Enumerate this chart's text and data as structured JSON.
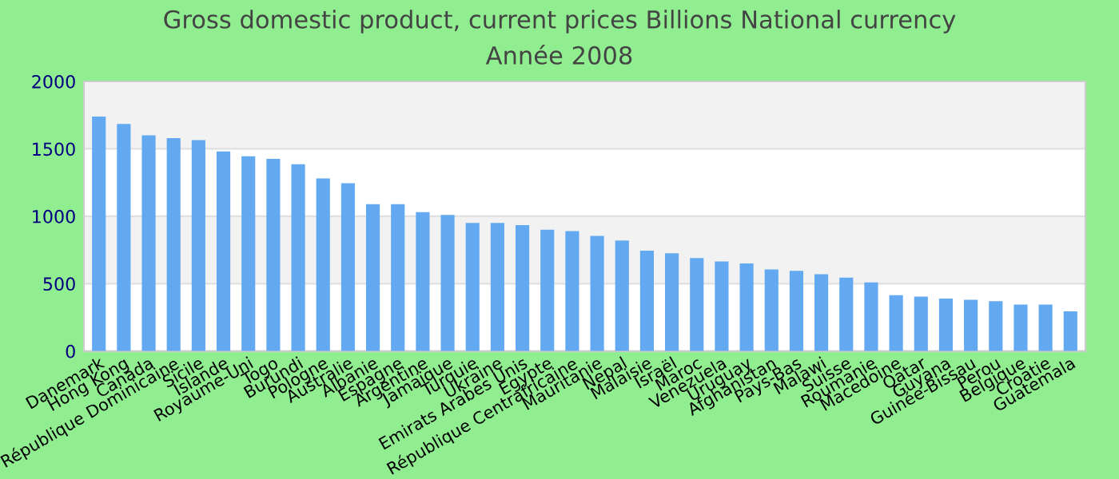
{
  "chart_data": {
    "type": "bar",
    "title": "Gross domestic product, current prices Billions National currency",
    "subtitle": "Année 2008",
    "categories": [
      "Danemark",
      "Hong Kong",
      "Canada",
      "République Dominicaine",
      "Sicile",
      "Islande",
      "Royaume-Uni",
      "Togo",
      "Burundi",
      "Pologne",
      "Australie",
      "Albanie",
      "Espagne",
      "Argentine",
      "Jamaïque",
      "Turquie",
      "Ukraine",
      "Emirats Arabes Unis",
      "Egypte",
      "République Centrafricaine",
      "Mauritanie",
      "Nepal",
      "Malaisie",
      "Israël",
      "Maroc",
      "Venezuela",
      "Uruguay",
      "Afghanistan",
      "Pays-Bas",
      "Malawi",
      "Suisse",
      "Roumanie",
      "Macedoine",
      "Qatar",
      "Guyana",
      "Guinée-Bissau",
      "Perou",
      "Belgique",
      "Croatie",
      "Guatemala"
    ],
    "values": [
      1740,
      1685,
      1600,
      1580,
      1565,
      1480,
      1445,
      1425,
      1385,
      1280,
      1245,
      1090,
      1090,
      1030,
      1010,
      950,
      950,
      935,
      900,
      890,
      855,
      820,
      745,
      725,
      690,
      665,
      650,
      605,
      595,
      570,
      545,
      510,
      415,
      405,
      390,
      380,
      370,
      345,
      345,
      295
    ],
    "color": "#62a9f2",
    "ylim": [
      0,
      2000
    ],
    "yticks": [
      0,
      500,
      1000,
      1500,
      2000
    ],
    "grid": "y"
  }
}
